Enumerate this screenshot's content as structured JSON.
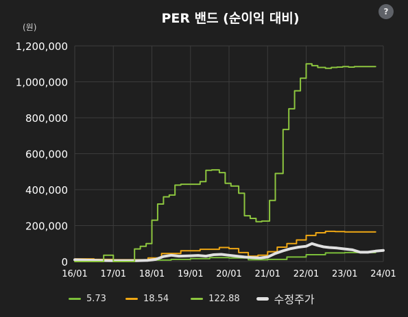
{
  "help_button": {
    "label": "?"
  },
  "chart_data": {
    "type": "line",
    "title": "PER 밴드 (순이익 대비)",
    "unit_label": "(원)",
    "ylim": [
      0,
      1200000
    ],
    "y_ticks": [
      0,
      200000,
      400000,
      600000,
      800000,
      1000000,
      1200000
    ],
    "y_tick_labels": [
      "0",
      "200,000",
      "400,000",
      "600,000",
      "800,000",
      "1,000,000",
      "1,200,000"
    ],
    "xlim": [
      2016.0,
      2024.0
    ],
    "x_ticks": [
      2016,
      2017,
      2018,
      2019,
      2020,
      2021,
      2022,
      2023,
      2024
    ],
    "x_tick_labels": [
      "16/01",
      "17/01",
      "18/01",
      "19/01",
      "20/01",
      "21/01",
      "22/01",
      "23/01",
      "24/01"
    ],
    "grid": true,
    "legend_position": "bottom",
    "series": [
      {
        "name": "5.73",
        "color": "#7cbf3a",
        "width": 2,
        "shape": "step",
        "x": [
          2016.0,
          2016.5,
          2017.0,
          2017.5,
          2018.0,
          2018.5,
          2019.0,
          2019.5,
          2020.0,
          2020.5,
          2021.0,
          2021.5,
          2022.0,
          2022.5,
          2023.0,
          2023.5,
          2023.8
        ],
        "y": [
          8000,
          6000,
          5000,
          6000,
          8000,
          12000,
          16000,
          22000,
          20000,
          10000,
          12000,
          25000,
          38000,
          48000,
          50000,
          50000,
          50000
        ]
      },
      {
        "name": "18.54",
        "color": "#f0a814",
        "width": 2,
        "shape": "step",
        "x": [
          2016.0,
          2016.5,
          2017.0,
          2017.5,
          2017.9,
          2018.25,
          2018.75,
          2019.25,
          2019.75,
          2020.0,
          2020.25,
          2020.5,
          2020.75,
          2021.0,
          2021.25,
          2021.5,
          2021.75,
          2022.0,
          2022.25,
          2022.5,
          2022.75,
          2023.0,
          2023.25,
          2023.5,
          2023.8
        ],
        "y": [
          15000,
          12000,
          10000,
          10000,
          20000,
          45000,
          60000,
          68000,
          78000,
          72000,
          50000,
          30000,
          35000,
          55000,
          80000,
          100000,
          120000,
          145000,
          160000,
          168000,
          167000,
          165000,
          165000,
          165000,
          165000
        ]
      },
      {
        "name": "122.88",
        "color": "#8dc63f",
        "width": 2,
        "shape": "step",
        "x": [
          2016.0,
          2016.75,
          2017.0,
          2017.4,
          2017.55,
          2017.7,
          2017.85,
          2018.0,
          2018.15,
          2018.3,
          2018.45,
          2018.6,
          2018.75,
          2019.0,
          2019.25,
          2019.4,
          2019.55,
          2019.75,
          2019.9,
          2020.05,
          2020.25,
          2020.4,
          2020.55,
          2020.7,
          2020.85,
          2021.05,
          2021.2,
          2021.4,
          2021.55,
          2021.7,
          2021.85,
          2022.0,
          2022.15,
          2022.3,
          2022.5,
          2022.65,
          2022.8,
          2022.95,
          2023.1,
          2023.25,
          2023.45,
          2023.6,
          2023.8
        ],
        "y": [
          0,
          35000,
          0,
          0,
          70000,
          85000,
          100000,
          230000,
          320000,
          360000,
          370000,
          425000,
          430000,
          430000,
          445000,
          508000,
          510000,
          495000,
          435000,
          420000,
          380000,
          255000,
          240000,
          222000,
          225000,
          340000,
          490000,
          735000,
          850000,
          950000,
          1020000,
          1100000,
          1090000,
          1080000,
          1075000,
          1080000,
          1082000,
          1085000,
          1082000,
          1085000,
          1085000,
          1085000,
          1085000
        ]
      },
      {
        "name": "수정주가",
        "color": "#e0e0e0",
        "width": 4,
        "shape": "line",
        "x": [
          2016.0,
          2016.3,
          2016.6,
          2017.0,
          2017.3,
          2017.6,
          2017.9,
          2018.1,
          2018.3,
          2018.5,
          2018.7,
          2019.0,
          2019.2,
          2019.4,
          2019.6,
          2019.8,
          2020.0,
          2020.2,
          2020.4,
          2020.6,
          2020.8,
          2021.0,
          2021.2,
          2021.4,
          2021.6,
          2021.8,
          2022.0,
          2022.15,
          2022.3,
          2022.45,
          2022.6,
          2022.8,
          2023.0,
          2023.2,
          2023.4,
          2023.6,
          2023.8,
          2024.0
        ],
        "y": [
          10000,
          8000,
          6000,
          5000,
          5000,
          5000,
          7000,
          12000,
          28000,
          35000,
          30000,
          32000,
          34000,
          30000,
          38000,
          40000,
          35000,
          30000,
          25000,
          22000,
          20000,
          25000,
          45000,
          60000,
          72000,
          80000,
          85000,
          100000,
          90000,
          82000,
          78000,
          75000,
          70000,
          65000,
          52000,
          52000,
          58000,
          62000
        ]
      }
    ]
  }
}
